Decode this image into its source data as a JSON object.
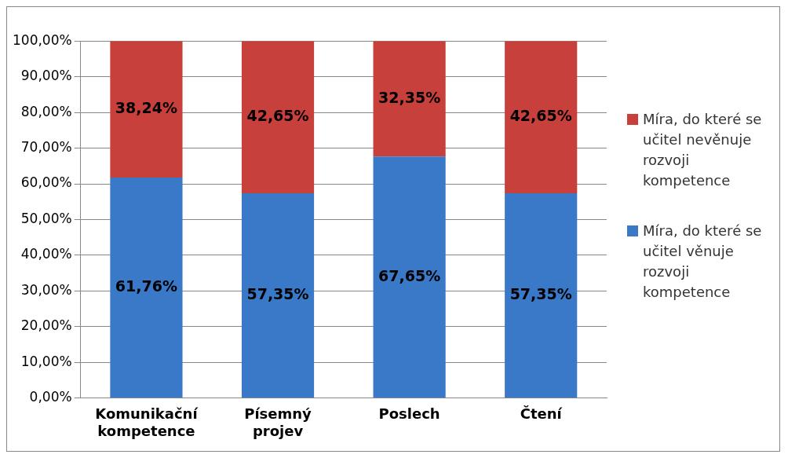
{
  "chart_data": {
    "type": "bar",
    "stacked": true,
    "categories": [
      "Komunikační kompetence",
      "Písemný projev",
      "Poslech",
      "Čtení"
    ],
    "series": [
      {
        "name": "Míra, do které se učitel věnuje rozvoji kompetence",
        "color": "#3a78c8",
        "values": [
          61.76,
          57.35,
          67.65,
          57.35
        ],
        "value_labels": [
          "61,76%",
          "57,35%",
          "67,65%",
          "57,35%"
        ]
      },
      {
        "name": "Míra, do které se učitel nevěnuje rozvoji kompetence",
        "color": "#c8403c",
        "values": [
          38.24,
          42.65,
          32.35,
          42.65
        ],
        "value_labels": [
          "38,24%",
          "42,65%",
          "32,35%",
          "42,65%"
        ]
      }
    ],
    "ylim": [
      0,
      100
    ],
    "yticks": [
      {
        "value": 0,
        "label": "0,00%"
      },
      {
        "value": 10,
        "label": "10,00%"
      },
      {
        "value": 20,
        "label": "20,00%"
      },
      {
        "value": 30,
        "label": "30,00%"
      },
      {
        "value": 40,
        "label": "40,00%"
      },
      {
        "value": 50,
        "label": "50,00%"
      },
      {
        "value": 60,
        "label": "60,00%"
      },
      {
        "value": 70,
        "label": "70,00%"
      },
      {
        "value": 80,
        "label": "80,00%"
      },
      {
        "value": 90,
        "label": "90,00%"
      },
      {
        "value": 100,
        "label": "100,00%"
      }
    ],
    "grid": "y",
    "legend": "right"
  }
}
